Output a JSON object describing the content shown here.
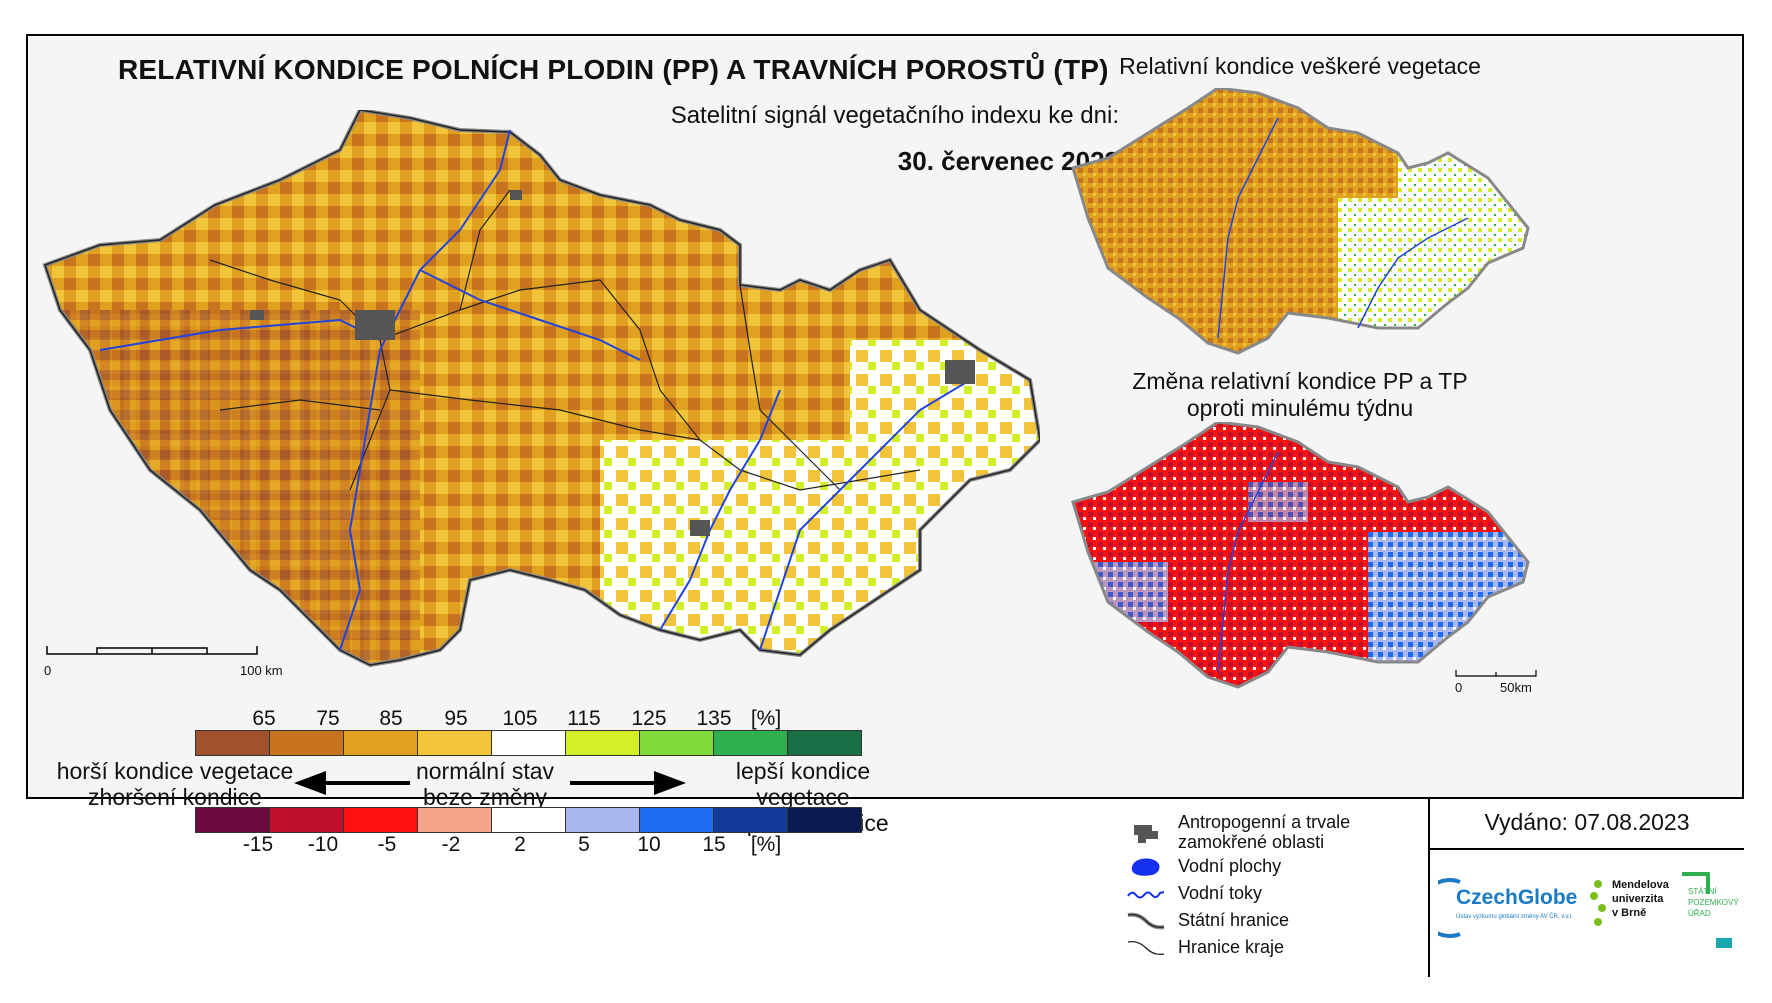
{
  "header": {
    "title": "RELATIVNÍ KONDICE POLNÍCH PLODIN (PP) A TRAVNÍCH POROSTŮ (TP)",
    "subtitle": "Satelitní signál vegetačního indexu ke dni:",
    "date": "30. červenec 2023"
  },
  "side_maps": {
    "top_title": "Relativní kondice veškeré vegetace",
    "bottom_title_line1": "Změna relativní kondice PP a TP",
    "bottom_title_line2": "oproti minulému týdnu"
  },
  "scale_main": {
    "start": "0",
    "end": "100 km"
  },
  "scale_small": {
    "start": "0",
    "end": "50km"
  },
  "legend": {
    "condition_ticks": [
      "65",
      "75",
      "85",
      "95",
      "105",
      "115",
      "125",
      "135"
    ],
    "condition_unit": "[%]",
    "condition_colors": [
      "#a0522d",
      "#c8741f",
      "#e0a020",
      "#f2c43a",
      "#ffffff",
      "#d4ef2a",
      "#7fdc3a",
      "#2fb04e",
      "#1a6e45"
    ],
    "change_ticks": [
      "-15",
      "-10",
      "-5",
      "-2",
      "2",
      "5",
      "10",
      "15"
    ],
    "change_unit": "[%]",
    "change_colors": [
      "#6b0a3c",
      "#c0102e",
      "#ff1010",
      "#f4a58a",
      "#ffffff",
      "#a8b8ee",
      "#1f6bf0",
      "#143a9a",
      "#0a1b4f"
    ],
    "left_line1": "horší kondice vegetace",
    "left_line2": "zhoršení kondice",
    "center_line1": "normální stav",
    "center_line2": "beze změny",
    "right_line1": "lepší kondice vegetace",
    "right_line2": "zlepšení kondice"
  },
  "symbols": {
    "anthro_line1": "Antropogenní a trvale",
    "anthro_line2": "zamokřené oblasti",
    "water_bodies": "Vodní plochy",
    "rivers": "Vodní toky",
    "state_border": "Státní hranice",
    "region_border": "Hranice kraje"
  },
  "issued": "Vydáno: 07.08.2023",
  "logos": {
    "czechglobe": "CzechGlobe",
    "czechglobe_sub": "Ústav výzkumu globální změny AV ČR, v.v.i.",
    "mendelu_line1": "Mendelova",
    "mendelu_line2": "univerzita",
    "mendelu_line3": "v Brně",
    "spu_line1": "STÁTNÍ",
    "spu_line2": "POZEMKOVÝ",
    "spu_line3": "ÚŘAD"
  }
}
